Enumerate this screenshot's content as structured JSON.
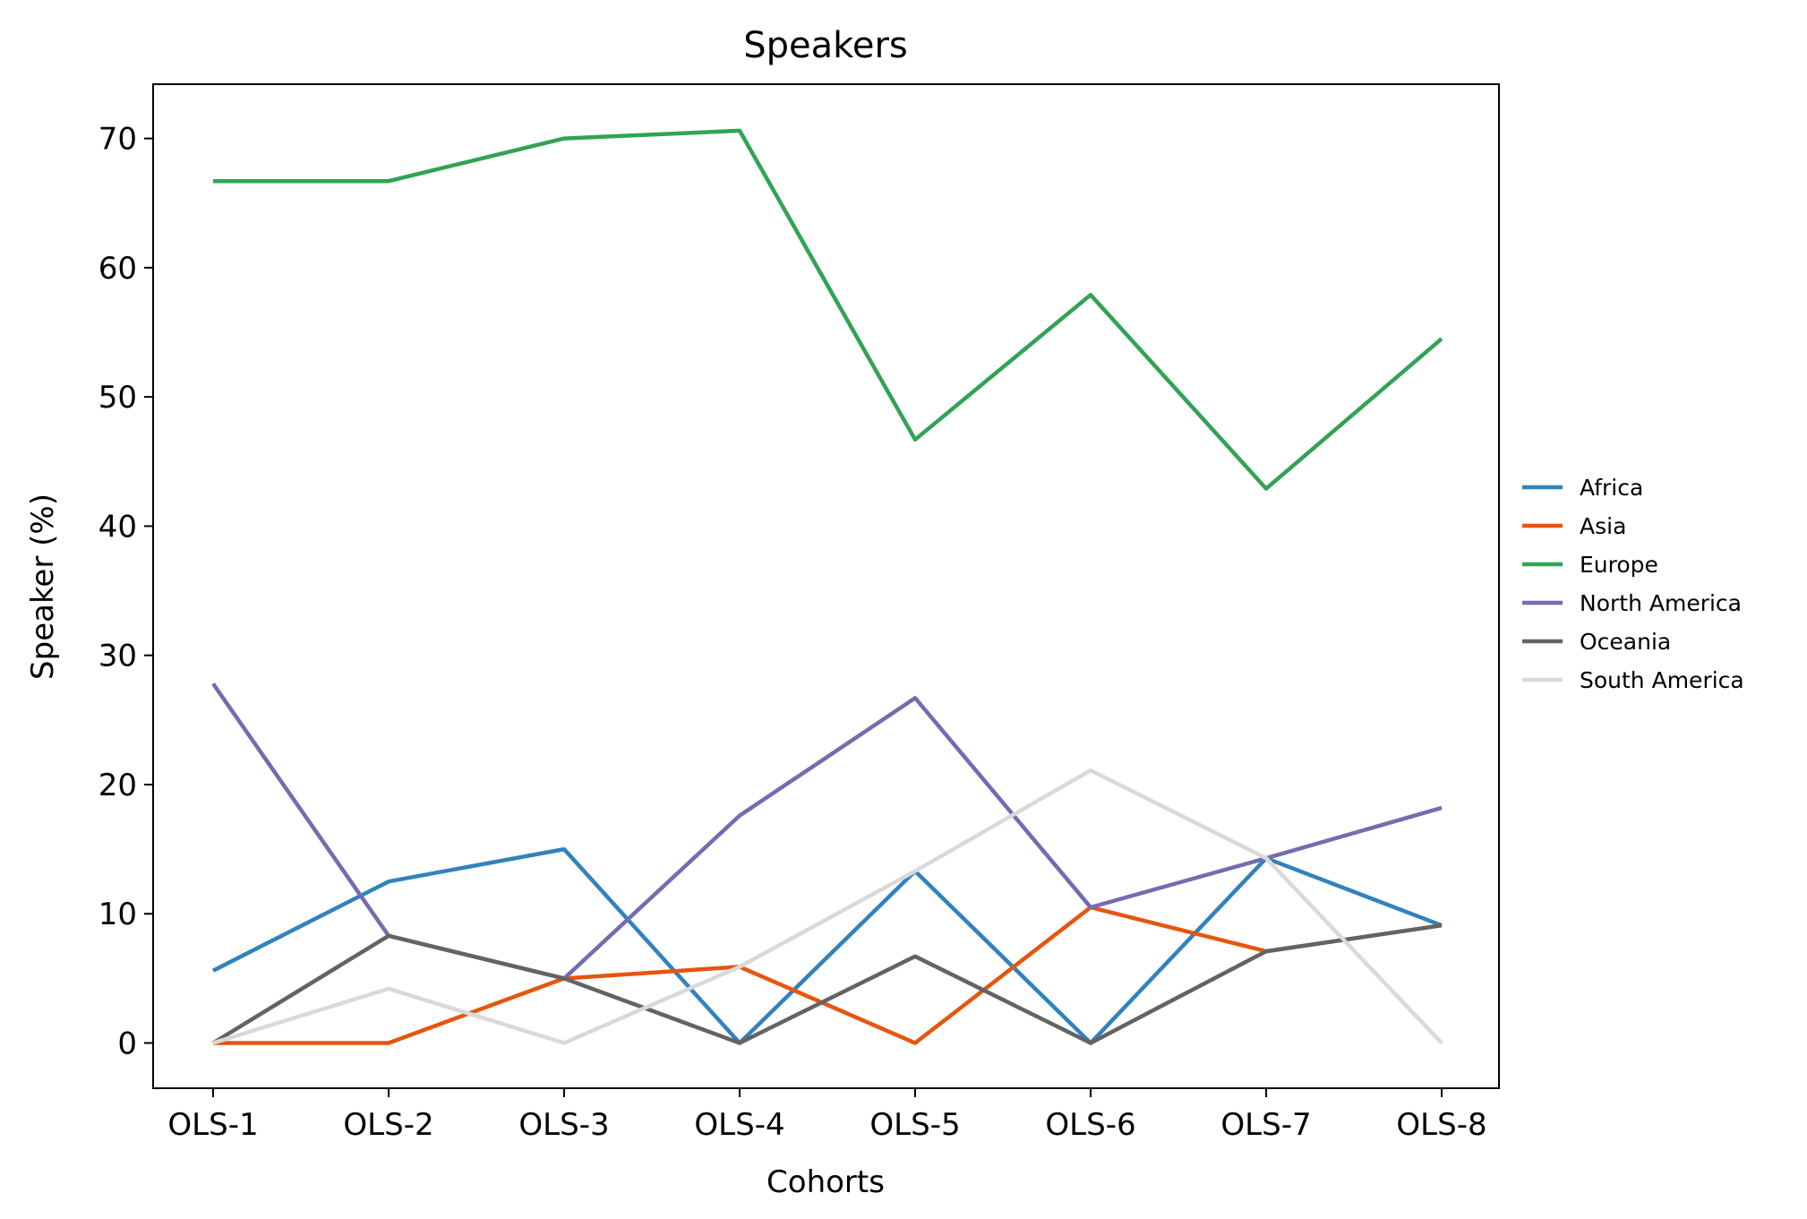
{
  "chart_data": {
    "type": "line",
    "title": "Speakers",
    "xlabel": "Cohorts",
    "ylabel": "Speaker (%)",
    "categories": [
      "OLS-1",
      "OLS-2",
      "OLS-3",
      "OLS-4",
      "OLS-5",
      "OLS-6",
      "OLS-7",
      "OLS-8"
    ],
    "ylim": [
      -3.5,
      74.2
    ],
    "yticks": [
      0,
      10,
      20,
      30,
      40,
      50,
      60,
      70
    ],
    "grid": false,
    "legend_position": "right",
    "series": [
      {
        "name": "Africa",
        "color": "#3182bd",
        "values": [
          5.6,
          12.5,
          15.0,
          0.0,
          13.3,
          0.0,
          14.3,
          9.1
        ]
      },
      {
        "name": "Asia",
        "color": "#e6550d",
        "values": [
          0.0,
          0.0,
          5.0,
          5.9,
          0.0,
          10.5,
          7.1,
          9.1
        ]
      },
      {
        "name": "Europe",
        "color": "#31a354",
        "values": [
          66.7,
          66.7,
          70.0,
          70.6,
          46.7,
          57.9,
          42.9,
          54.5
        ]
      },
      {
        "name": "North America",
        "color": "#756bb1",
        "values": [
          27.8,
          8.3,
          5.0,
          17.6,
          26.7,
          10.5,
          14.3,
          18.2
        ]
      },
      {
        "name": "Oceania",
        "color": "#636363",
        "values": [
          0.0,
          8.3,
          5.0,
          0.0,
          6.7,
          0.0,
          7.1,
          9.1
        ]
      },
      {
        "name": "South America",
        "color": "#d9d9d9",
        "values": [
          0.0,
          4.2,
          0.0,
          5.9,
          13.3,
          21.1,
          14.3,
          0.0
        ]
      }
    ]
  }
}
